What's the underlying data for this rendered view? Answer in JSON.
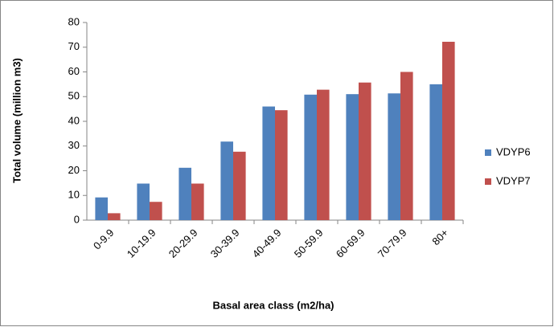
{
  "chart_data": {
    "type": "bar",
    "x_label": "Basal area class (m2/ha)",
    "y_label": "Total volume (million m3)",
    "categories": [
      "0-9.9",
      "10-19.9",
      "20-29.9",
      "30-39.9",
      "40-49.9",
      "50-59.9",
      "60-69.9",
      "70-79.9",
      "80+"
    ],
    "series": [
      {
        "name": "VDYP6",
        "color": "#4f81bd",
        "values": [
          9.2,
          14.8,
          21.2,
          31.8,
          46,
          50.8,
          51,
          51.3,
          55
        ]
      },
      {
        "name": "VDYP7",
        "color": "#c0504d",
        "values": [
          2.8,
          7.4,
          14.8,
          27.7,
          44.5,
          52.8,
          55.7,
          60,
          72.2
        ]
      }
    ],
    "ylim": [
      0,
      80
    ],
    "yticks": [
      0,
      10,
      20,
      30,
      40,
      50,
      60,
      70,
      80
    ],
    "grid": false,
    "legend": "right"
  }
}
